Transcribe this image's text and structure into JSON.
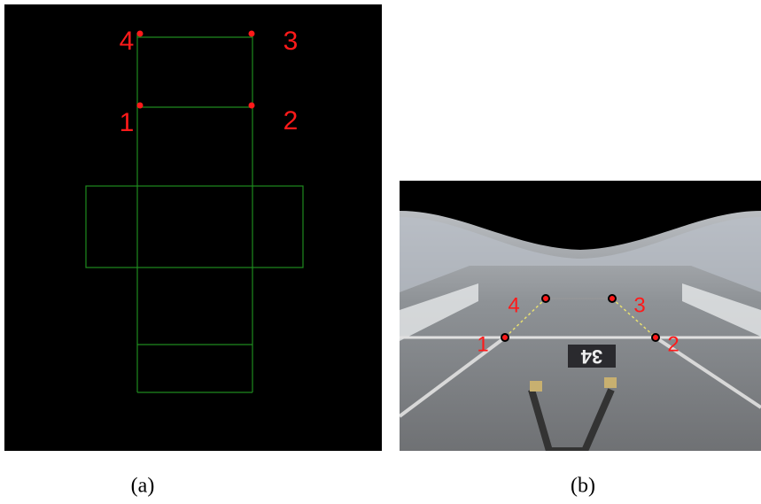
{
  "panels": [
    {
      "caption": "(a)",
      "point_labels": [
        "1",
        "2",
        "3",
        "4"
      ]
    },
    {
      "caption": "(b)",
      "point_labels": [
        "1",
        "2",
        "3",
        "4"
      ],
      "road_marking": "34"
    }
  ]
}
